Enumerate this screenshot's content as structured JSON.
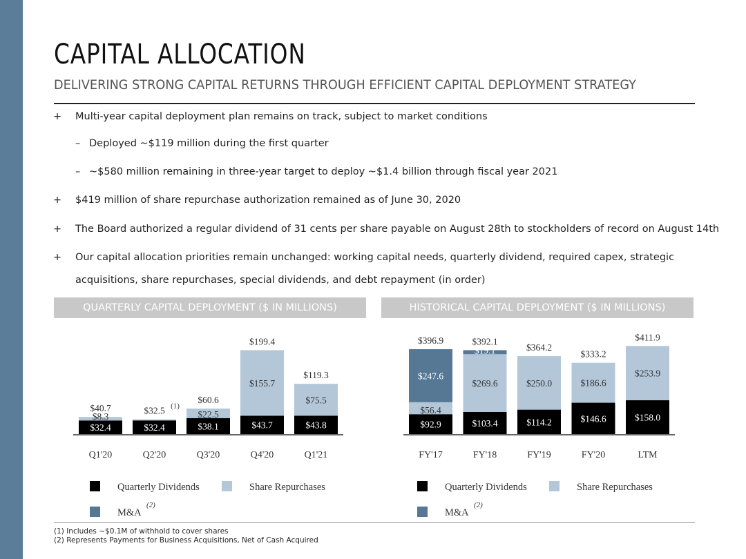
{
  "header": {
    "title": "CAPITAL ALLOCATION",
    "subtitle": "DELIVERING STRONG CAPITAL RETURNS THROUGH EFFICIENT CAPITAL DEPLOYMENT STRATEGY"
  },
  "bullets": [
    {
      "marker": "+",
      "text": "Multi-year capital deployment plan remains on track, subject to market conditions"
    },
    {
      "marker": "–",
      "text": "Deployed ~$119 million during the first quarter"
    },
    {
      "marker": "–",
      "text": "~$580 million remaining in three-year target to deploy ~$1.4 billion through fiscal year 2021"
    },
    {
      "marker": "+",
      "text": "$419 million of share repurchase authorization remained as of June 30, 2020"
    },
    {
      "marker": "+",
      "text": "The Board authorized a regular dividend of 31 cents per share payable on August 28th to stockholders of record on August 14th"
    },
    {
      "marker": "+",
      "text": "Our capital allocation priorities remain unchanged: working capital needs, quarterly dividend, required capex, strategic"
    },
    {
      "marker": "",
      "text": "acquisitions, share repurchases, special dividends, and debt repayment (in order)"
    }
  ],
  "colors": {
    "sidebar": "#5b7d9a",
    "dividends": "#000000",
    "repurchases": "#b3c7d9",
    "ma": "#567894",
    "panel_header": "#c8c8c8"
  },
  "chart_data": [
    {
      "type": "bar",
      "stacked": true,
      "title": "QUARTERLY CAPITAL DEPLOYMENT ($ IN MILLIONS)",
      "categories": [
        "Q1'20",
        "Q2'20",
        "Q3'20",
        "Q4'20",
        "Q1'21"
      ],
      "series": [
        {
          "name": "Quarterly Dividends",
          "values": [
            32.4,
            32.4,
            38.1,
            43.7,
            43.8
          ],
          "labels": [
            "$32.4",
            "$32.4",
            "$38.1",
            "$43.7",
            "$43.8"
          ]
        },
        {
          "name": "Share Repurchases",
          "values": [
            8.3,
            0.1,
            22.5,
            155.7,
            75.5
          ],
          "labels": [
            "$8.3",
            "",
            "$22.5",
            "$155.7",
            "$75.5"
          ]
        }
      ],
      "totals": [
        "$40.7",
        "$32.5",
        "$60.6",
        "$199.4",
        "$119.3"
      ],
      "total_values": [
        40.7,
        32.5,
        60.6,
        199.4,
        119.3
      ],
      "notes": [
        "",
        "(1)",
        "",
        "",
        ""
      ],
      "legend": [
        {
          "name": "Quarterly Dividends",
          "sup": ""
        },
        {
          "name": "Share Repurchases",
          "sup": ""
        },
        {
          "name": "M&A",
          "sup": "(2)"
        }
      ]
    },
    {
      "type": "bar",
      "stacked": true,
      "title": "HISTORICAL CAPITAL DEPLOYMENT ($ IN MILLIONS)",
      "categories": [
        "FY'17",
        "FY'18",
        "FY'19",
        "FY'20",
        "LTM"
      ],
      "series": [
        {
          "name": "Quarterly Dividends",
          "values": [
            92.9,
            103.4,
            114.2,
            146.6,
            158.0
          ],
          "labels": [
            "$92.9",
            "$103.4",
            "$114.2",
            "$146.6",
            "$158.0"
          ]
        },
        {
          "name": "Share Repurchases",
          "values": [
            56.4,
            269.6,
            250.0,
            186.6,
            253.9
          ],
          "labels": [
            "$56.4",
            "$269.6",
            "$250.0",
            "$186.6",
            "$253.9"
          ]
        },
        {
          "name": "M&A",
          "values": [
            247.6,
            19.1,
            0,
            0,
            0
          ],
          "labels": [
            "$247.6",
            "$19.1",
            "",
            "",
            ""
          ]
        }
      ],
      "totals": [
        "$396.9",
        "$392.1",
        "$364.2",
        "$333.2",
        "$411.9"
      ],
      "total_values": [
        396.9,
        392.1,
        364.2,
        333.2,
        411.9
      ],
      "legend": [
        {
          "name": "Quarterly Dividends",
          "sup": ""
        },
        {
          "name": "Share Repurchases",
          "sup": ""
        },
        {
          "name": "M&A",
          "sup": "(2)"
        }
      ]
    }
  ],
  "footnotes": [
    "(1) Includes ~$0.1M of withhold to cover shares",
    "(2) Represents Payments for Business Acquisitions, Net of Cash Acquired"
  ]
}
